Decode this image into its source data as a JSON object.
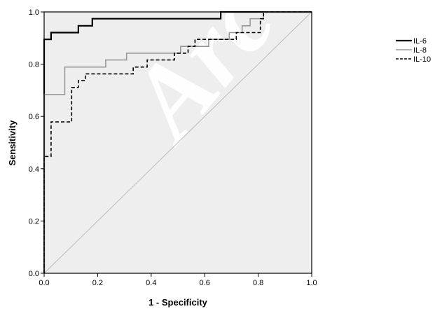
{
  "chart_data": {
    "type": "line",
    "title": "",
    "xlabel": "1 - Specificity",
    "ylabel": "Sensitivity",
    "xlim": [
      0,
      1
    ],
    "ylim": [
      0,
      1
    ],
    "xticks": [
      "0.0",
      "0.2",
      "0.4",
      "0.6",
      "0.8",
      "1.0"
    ],
    "yticks": [
      "0.0",
      "0.2",
      "0.4",
      "0.6",
      "0.8",
      "1.0"
    ],
    "grid": false,
    "legend_position": "top-right",
    "watermark": "Arc",
    "colors": {
      "plot_background": "#eeeeee"
    },
    "series": [
      {
        "name": "IL-6",
        "color": "#000000",
        "style": "solid",
        "width": 2.2,
        "points": [
          [
            0,
            0
          ],
          [
            0,
            0.895
          ],
          [
            0.026,
            0.895
          ],
          [
            0.026,
            0.921
          ],
          [
            0.128,
            0.921
          ],
          [
            0.128,
            0.947
          ],
          [
            0.18,
            0.947
          ],
          [
            0.18,
            0.974
          ],
          [
            0.66,
            0.974
          ],
          [
            0.66,
            1.0
          ],
          [
            1.0,
            1.0
          ]
        ]
      },
      {
        "name": "IL-8",
        "color": "#999999",
        "style": "solid",
        "width": 1.6,
        "points": [
          [
            0,
            0
          ],
          [
            0,
            0.684
          ],
          [
            0.077,
            0.684
          ],
          [
            0.077,
            0.789
          ],
          [
            0.23,
            0.789
          ],
          [
            0.23,
            0.816
          ],
          [
            0.308,
            0.816
          ],
          [
            0.308,
            0.842
          ],
          [
            0.51,
            0.842
          ],
          [
            0.51,
            0.868
          ],
          [
            0.615,
            0.868
          ],
          [
            0.615,
            0.895
          ],
          [
            0.692,
            0.895
          ],
          [
            0.692,
            0.921
          ],
          [
            0.74,
            0.921
          ],
          [
            0.74,
            0.947
          ],
          [
            0.77,
            0.947
          ],
          [
            0.77,
            0.974
          ],
          [
            0.82,
            0.974
          ],
          [
            0.82,
            1.0
          ],
          [
            1.0,
            1.0
          ]
        ]
      },
      {
        "name": "IL-10",
        "color": "#000000",
        "style": "dashed",
        "width": 1.6,
        "points": [
          [
            0,
            0
          ],
          [
            0,
            0.447
          ],
          [
            0.026,
            0.447
          ],
          [
            0.026,
            0.579
          ],
          [
            0.103,
            0.579
          ],
          [
            0.103,
            0.711
          ],
          [
            0.128,
            0.711
          ],
          [
            0.128,
            0.737
          ],
          [
            0.154,
            0.737
          ],
          [
            0.154,
            0.763
          ],
          [
            0.333,
            0.763
          ],
          [
            0.333,
            0.789
          ],
          [
            0.385,
            0.789
          ],
          [
            0.385,
            0.816
          ],
          [
            0.487,
            0.816
          ],
          [
            0.487,
            0.842
          ],
          [
            0.538,
            0.842
          ],
          [
            0.538,
            0.868
          ],
          [
            0.564,
            0.868
          ],
          [
            0.564,
            0.895
          ],
          [
            0.718,
            0.895
          ],
          [
            0.718,
            0.921
          ],
          [
            0.808,
            0.921
          ],
          [
            0.808,
            0.974
          ],
          [
            0.82,
            0.974
          ],
          [
            0.82,
            1.0
          ],
          [
            1.0,
            1.0
          ]
        ]
      }
    ]
  }
}
